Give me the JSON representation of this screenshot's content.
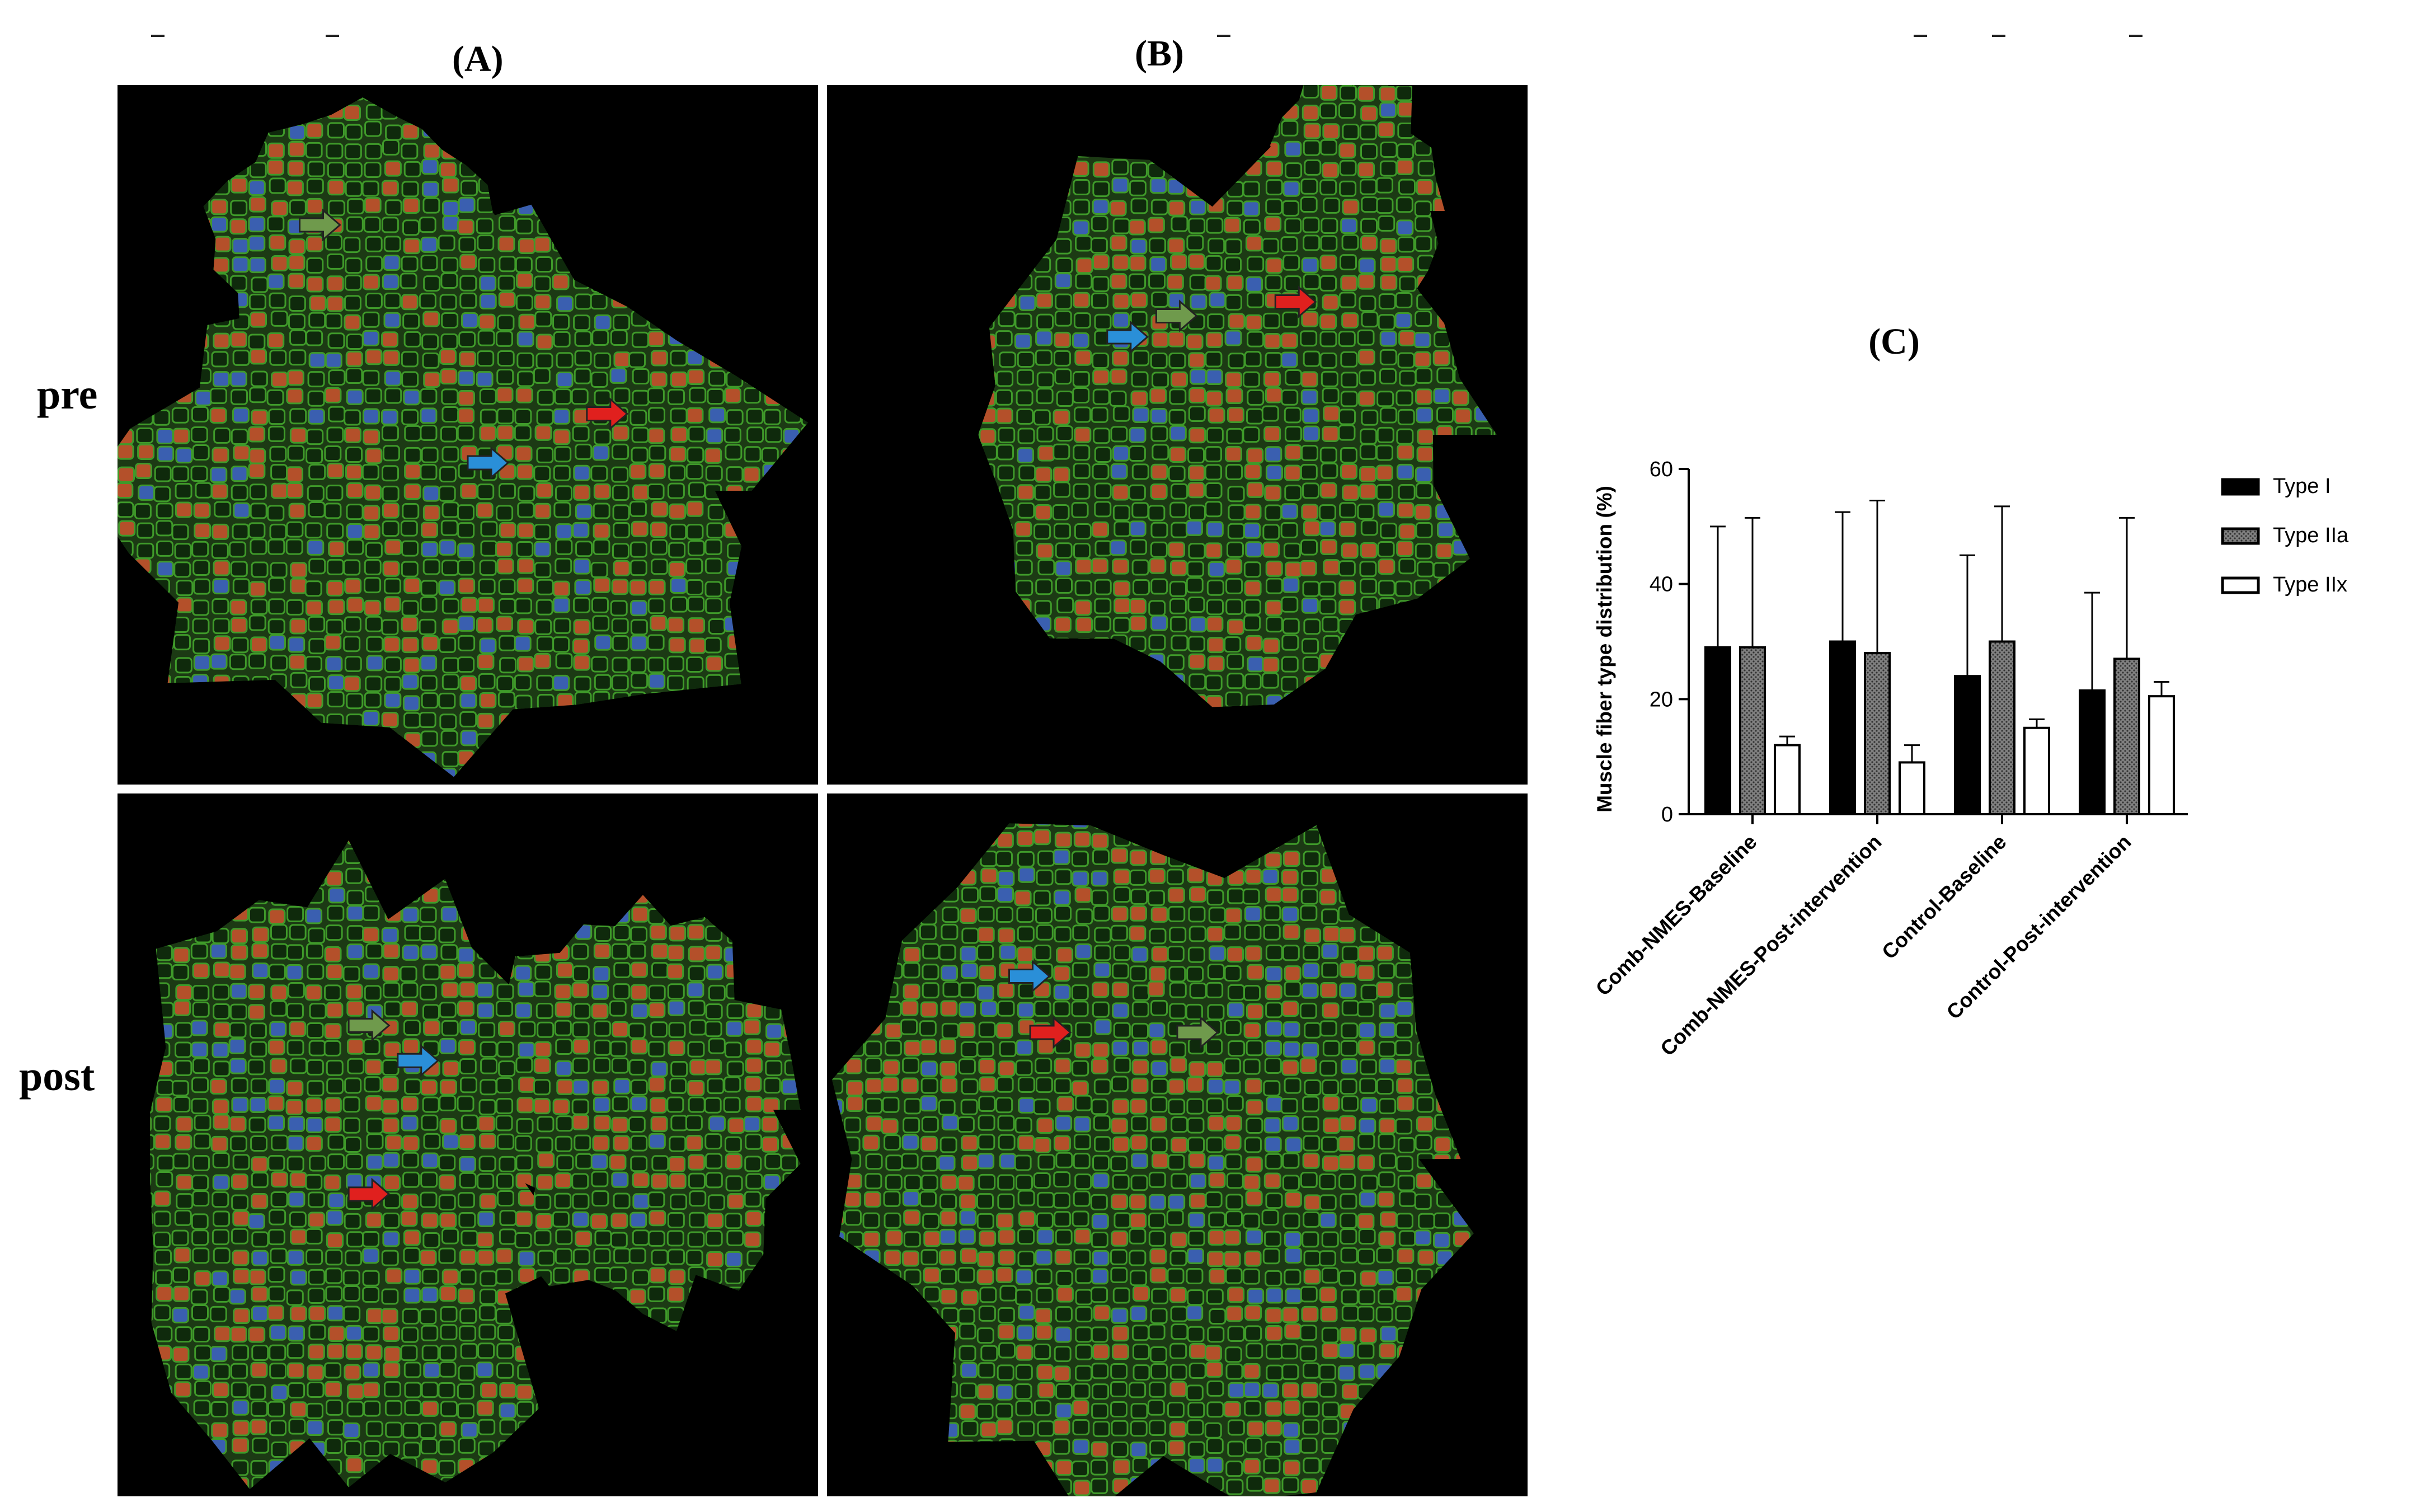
{
  "panels": {
    "a_label": "(A)",
    "b_label": "(B)",
    "c_label": "(C)",
    "row_pre": "pre",
    "row_post": "post"
  },
  "micrographs": [
    {
      "name": "micrograph-a-pre",
      "arrows": [
        "green-arrow-icon",
        "blue-arrow-icon",
        "red-arrow-icon"
      ]
    },
    {
      "name": "micrograph-b-pre",
      "arrows": [
        "blue-arrow-icon",
        "green-arrow-icon",
        "red-arrow-icon"
      ]
    },
    {
      "name": "micrograph-a-post",
      "arrows": [
        "green-arrow-icon",
        "blue-arrow-icon",
        "red-arrow-icon"
      ]
    },
    {
      "name": "micrograph-b-post",
      "arrows": [
        "blue-arrow-icon",
        "red-arrow-icon",
        "green-arrow-icon"
      ]
    }
  ],
  "colors": {
    "arrow_green": "#6f9a4c",
    "arrow_blue": "#2a8fd8",
    "arrow_red": "#e0201e",
    "fiber_green": "#3f9a2a",
    "fiber_red": "#b4502a",
    "nuclei_blue": "#3a5fb0",
    "type_I": "#000000",
    "type_IIa": "#808080",
    "type_IIx": "#ffffff"
  },
  "chart_data": {
    "type": "bar",
    "title": "",
    "xlabel": "",
    "ylabel": "Muscle fiber type distribution (%)",
    "ylim": [
      0,
      60
    ],
    "yticks": [
      "0",
      "20",
      "40",
      "60"
    ],
    "categories": [
      "Comb-NMES-Baseline",
      "Comb-NMES-Post-intervention",
      "Control-Baseline",
      "Control-Post-intervention"
    ],
    "series": [
      {
        "name": "Type I",
        "values": [
          29,
          30,
          24,
          21.5
        ],
        "error_upper": [
          50,
          52.5,
          45,
          38.5
        ]
      },
      {
        "name": "Type IIa",
        "values": [
          29,
          28,
          30,
          27
        ],
        "error_upper": [
          51.5,
          54.5,
          53.5,
          51.5
        ]
      },
      {
        "name": "Type IIx",
        "values": [
          12,
          9,
          15,
          20.5
        ],
        "error_upper": [
          13.5,
          12,
          16.5,
          23
        ]
      }
    ],
    "legend_position": "right",
    "grid": false
  }
}
